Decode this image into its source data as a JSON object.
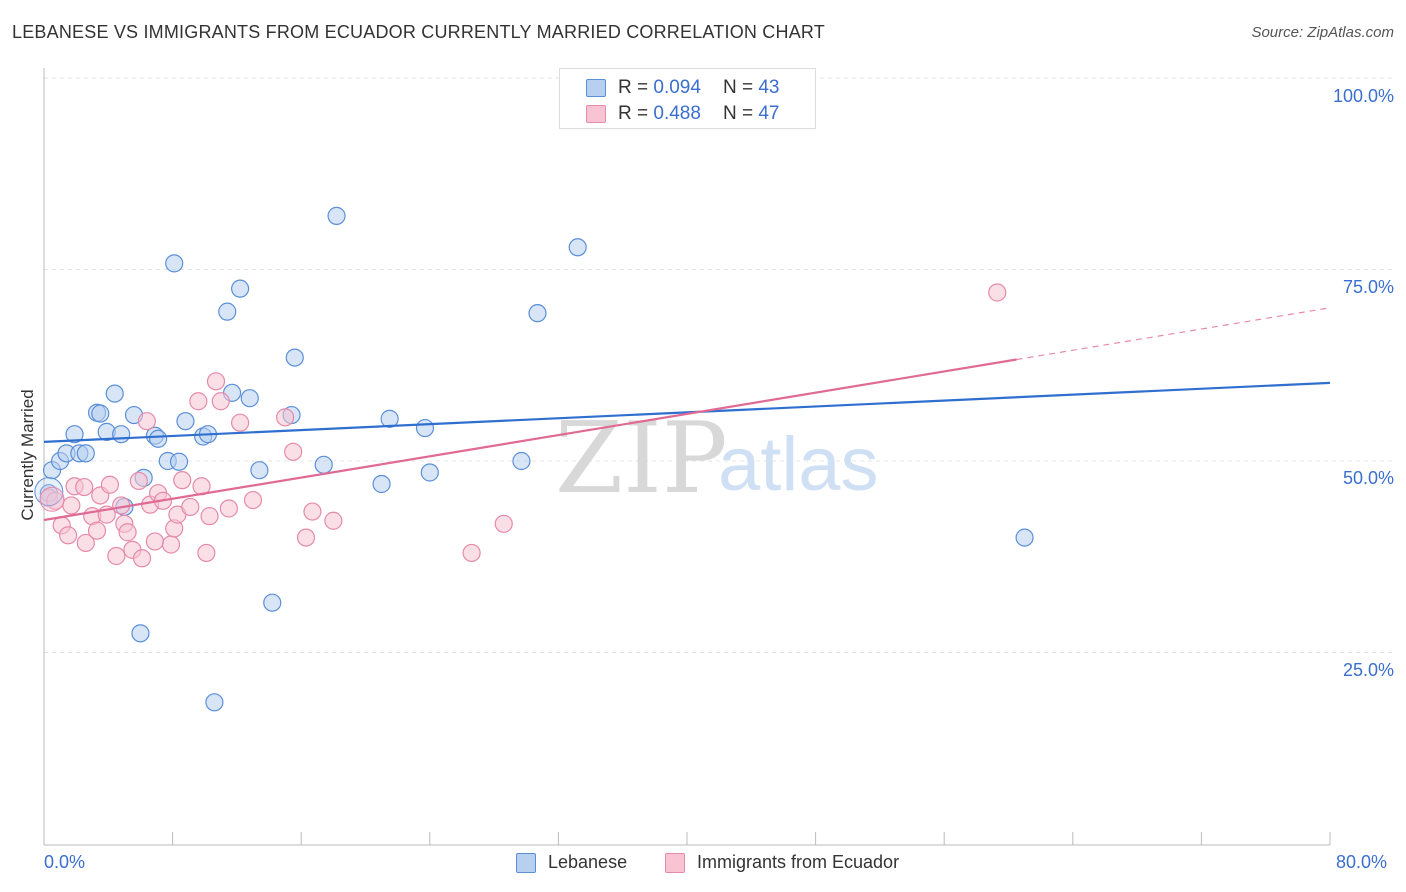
{
  "title": "LEBANESE VS IMMIGRANTS FROM ECUADOR CURRENTLY MARRIED CORRELATION CHART",
  "source": "Source: ZipAtlas.com",
  "watermark": {
    "zip": "ZIP",
    "atlas": "atlas"
  },
  "legend": {
    "r_label": "R =",
    "n_label": "N =",
    "rows": [
      {
        "r": "0.094",
        "n": "43",
        "color": "#5b8fd8"
      },
      {
        "r": "0.488",
        "n": "47",
        "color": "#e58aaa"
      }
    ]
  },
  "chart_data": {
    "type": "scatter",
    "title": "LEBANESE VS IMMIGRANTS FROM ECUADOR CURRENTLY MARRIED CORRELATION CHART",
    "xlabel": "",
    "ylabel": "Currently Married",
    "xlim": [
      0,
      80
    ],
    "ylim": [
      0,
      103
    ],
    "x_tick_labels": [
      "0.0%",
      "80.0%"
    ],
    "y_ticks": [
      25,
      50,
      75,
      100
    ],
    "y_tick_labels": [
      "25.0%",
      "50.0%",
      "75.0%",
      "100.0%"
    ],
    "grid": true,
    "series": [
      {
        "name": "Lebanese",
        "color": "#5b8fd8",
        "fill": "#b8d0f0",
        "r": 0.094,
        "n": 43,
        "trend": {
          "x0": 0,
          "y0": 52.5,
          "x1": 80,
          "y1": 60.2,
          "dashed_from": null
        },
        "points": [
          [
            0.5,
            48.8
          ],
          [
            1.0,
            50.0
          ],
          [
            1.4,
            51.0
          ],
          [
            1.9,
            53.5
          ],
          [
            2.2,
            51.0
          ],
          [
            2.6,
            51.0
          ],
          [
            3.3,
            56.3
          ],
          [
            3.5,
            56.2
          ],
          [
            3.9,
            53.8
          ],
          [
            4.4,
            58.8
          ],
          [
            4.8,
            53.5
          ],
          [
            5.0,
            44.0
          ],
          [
            5.6,
            56.0
          ],
          [
            6.2,
            47.8
          ],
          [
            6.9,
            53.3
          ],
          [
            7.1,
            52.9
          ],
          [
            7.7,
            50.0
          ],
          [
            8.1,
            75.8
          ],
          [
            8.4,
            49.9
          ],
          [
            8.8,
            55.2
          ],
          [
            9.9,
            53.2
          ],
          [
            10.2,
            53.5
          ],
          [
            11.4,
            69.5
          ],
          [
            11.7,
            58.9
          ],
          [
            12.2,
            72.5
          ],
          [
            12.8,
            58.2
          ],
          [
            13.4,
            48.8
          ],
          [
            14.2,
            31.5
          ],
          [
            15.4,
            56.0
          ],
          [
            15.6,
            63.5
          ],
          [
            17.4,
            49.5
          ],
          [
            18.2,
            82.0
          ],
          [
            21.0,
            47.0
          ],
          [
            21.5,
            55.5
          ],
          [
            23.7,
            54.3
          ],
          [
            24.0,
            48.5
          ],
          [
            29.7,
            50.0
          ],
          [
            30.7,
            69.3
          ],
          [
            33.2,
            77.9
          ],
          [
            61.0,
            40.0
          ],
          [
            6.0,
            27.5
          ],
          [
            10.6,
            18.5
          ],
          [
            0.3,
            45.8
          ]
        ]
      },
      {
        "name": "Immigrants from Ecuador",
        "color": "#e58aaa",
        "fill": "#f8c4d4",
        "r": 0.488,
        "n": 47,
        "trend": {
          "x0": 0,
          "y0": 42.3,
          "x1": 80,
          "y1": 70.0,
          "dashed_from": 60.5
        },
        "points": [
          [
            0.3,
            45.2
          ],
          [
            0.7,
            44.8
          ],
          [
            1.1,
            41.6
          ],
          [
            1.5,
            40.3
          ],
          [
            1.7,
            44.2
          ],
          [
            1.9,
            46.7
          ],
          [
            2.5,
            46.6
          ],
          [
            2.6,
            39.3
          ],
          [
            3.0,
            42.8
          ],
          [
            3.3,
            40.9
          ],
          [
            3.5,
            45.5
          ],
          [
            3.9,
            43.0
          ],
          [
            4.1,
            46.9
          ],
          [
            4.5,
            37.6
          ],
          [
            4.8,
            44.2
          ],
          [
            5.0,
            41.8
          ],
          [
            5.2,
            40.7
          ],
          [
            5.5,
            38.4
          ],
          [
            5.9,
            47.4
          ],
          [
            6.1,
            37.3
          ],
          [
            6.4,
            55.2
          ],
          [
            6.6,
            44.3
          ],
          [
            6.9,
            39.5
          ],
          [
            7.1,
            45.8
          ],
          [
            7.4,
            44.8
          ],
          [
            7.9,
            39.1
          ],
          [
            8.1,
            41.2
          ],
          [
            8.3,
            43.0
          ],
          [
            8.6,
            47.5
          ],
          [
            9.1,
            44.0
          ],
          [
            9.6,
            57.8
          ],
          [
            9.8,
            46.7
          ],
          [
            10.1,
            38.0
          ],
          [
            10.3,
            42.8
          ],
          [
            10.7,
            60.4
          ],
          [
            11.0,
            57.8
          ],
          [
            11.5,
            43.8
          ],
          [
            12.2,
            55.0
          ],
          [
            13.0,
            44.9
          ],
          [
            15.0,
            55.7
          ],
          [
            15.5,
            51.2
          ],
          [
            16.3,
            40.0
          ],
          [
            16.7,
            43.4
          ],
          [
            18.0,
            42.2
          ],
          [
            26.6,
            38.0
          ],
          [
            28.6,
            41.8
          ],
          [
            59.3,
            72.0
          ]
        ]
      }
    ]
  },
  "bottom_legend": [
    "Lebanese",
    "Immigrants from Ecuador"
  ]
}
